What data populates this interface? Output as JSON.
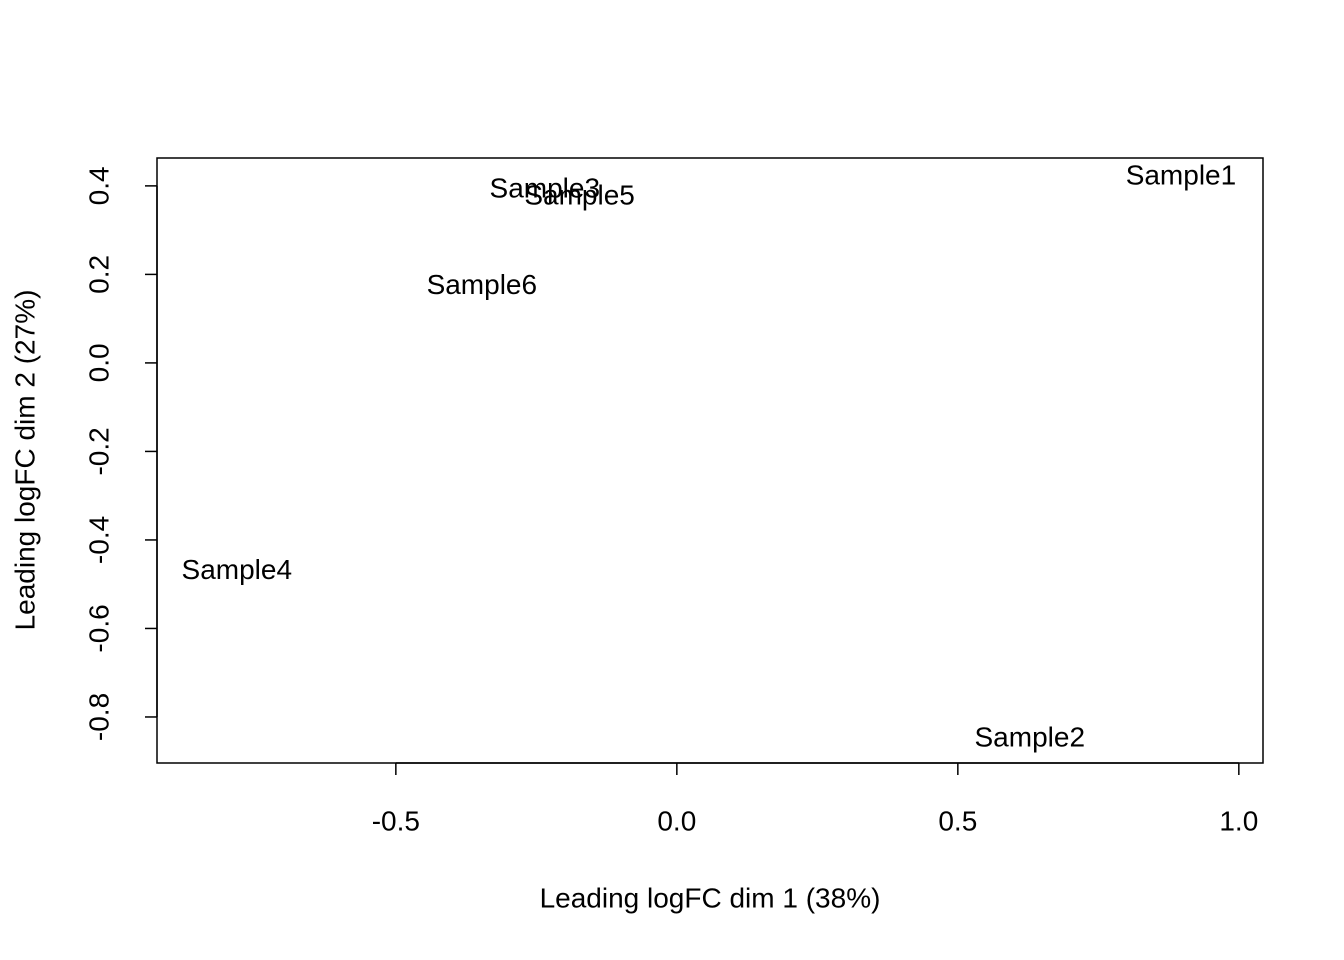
{
  "chart_data": {
    "type": "scatter",
    "x_label": "Leading logFC dim 1 (38%)",
    "y_label": "Leading logFC dim 2 (27%)",
    "labels": [
      "Sample1",
      "Sample2",
      "Sample3",
      "Sample4",
      "Sample5",
      "Sample6"
    ],
    "x": [
      0.897,
      0.628,
      -0.235,
      -0.783,
      -0.173,
      -0.347
    ],
    "values": [
      0.42,
      -0.85,
      0.391,
      -0.472,
      0.375,
      0.172
    ],
    "colors": [
      "#ff0000",
      "#0000ff",
      "#ff0000",
      "#0000ff",
      "#ff0000",
      "#0000ff"
    ],
    "xlim": [
      -0.925,
      1.043
    ],
    "ylim": [
      -0.904,
      0.463
    ],
    "xticks": [
      -0.5,
      {
        "value": 0,
        "label": "0.0"
      },
      0.5,
      {
        "value": 1,
        "label": "1.0"
      }
    ],
    "yticks": [
      -0.8,
      -0.6,
      -0.4,
      -0.2,
      {
        "value": 0,
        "label": "0.0"
      },
      0.2,
      0.4
    ]
  }
}
